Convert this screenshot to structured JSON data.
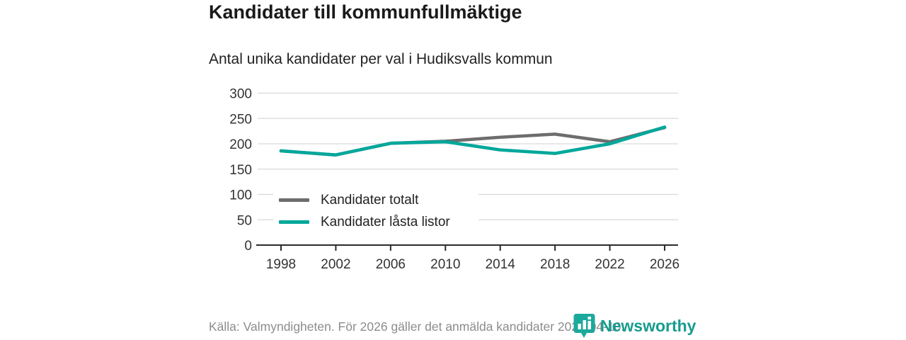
{
  "header": {
    "title": "Kandidater till kommunfullmäktige",
    "subtitle": "Antal unika kandidater per val i Hudiksvalls kommun"
  },
  "chart_data": {
    "type": "line",
    "x": [
      1998,
      2002,
      2006,
      2010,
      2014,
      2018,
      2022,
      2026
    ],
    "series": [
      {
        "name": "Kandidater totalt",
        "color": "#6d6d6d",
        "values": [
          186,
          178,
          201,
          205,
          213,
          219,
          204,
          232
        ]
      },
      {
        "name": "Kandidater låsta listor",
        "color": "#00a79b",
        "values": [
          186,
          178,
          201,
          204,
          188,
          181,
          200,
          233
        ]
      }
    ],
    "title": "Kandidater till kommunfullmäktige",
    "xlabel": "",
    "ylabel": "",
    "ylim": [
      0,
      300
    ],
    "yticks": [
      0,
      50,
      100,
      150,
      200,
      250,
      300
    ],
    "grid": true,
    "legend_position": "inside-lower-left",
    "gridline_color": "#d9d9d9",
    "axis_color": "#2b2b2b",
    "tick_label_color": "#333333"
  },
  "footer": {
    "source": "Källa: Valmyndigheten. För 2026 gäller det anmälda kandidater 2026-04-10.",
    "brand": "Newsworthy",
    "brand_color": "#179c8e",
    "brand_icon": "bar-chart-speech-bubble-icon",
    "brand_icon_color": "#1ba99c"
  }
}
